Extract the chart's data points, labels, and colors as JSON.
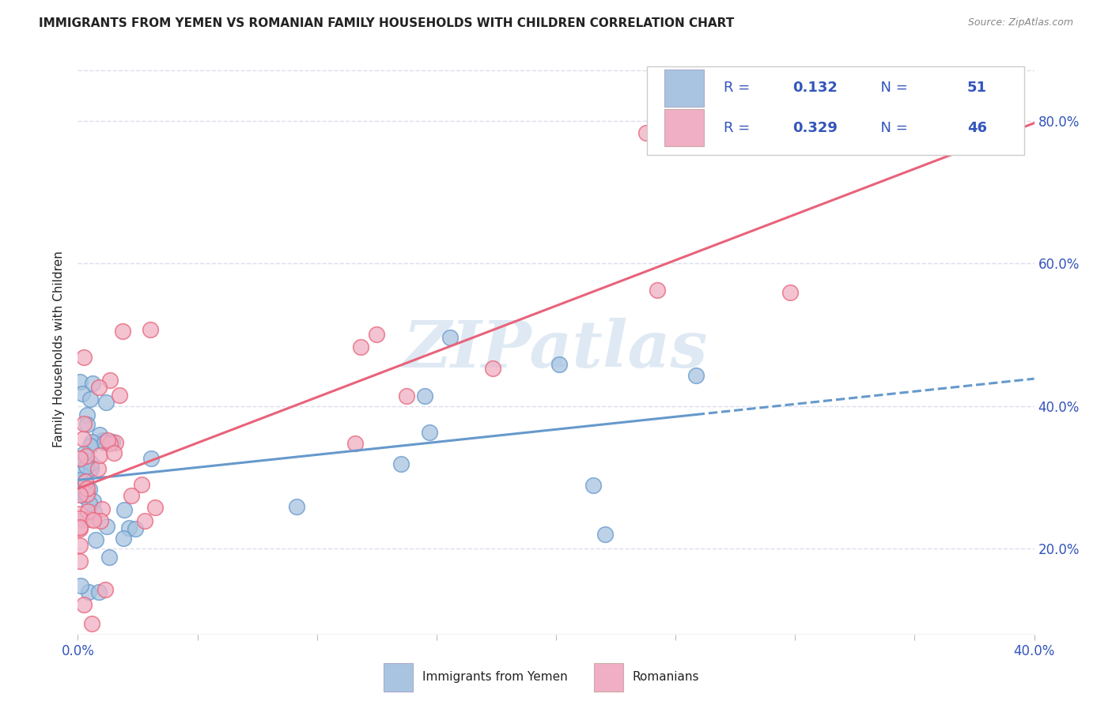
{
  "title": "IMMIGRANTS FROM YEMEN VS ROMANIAN FAMILY HOUSEHOLDS WITH CHILDREN CORRELATION CHART",
  "source": "Source: ZipAtlas.com",
  "ylabel": "Family Households with Children",
  "yticks_labels": [
    "20.0%",
    "40.0%",
    "60.0%",
    "80.0%"
  ],
  "ytick_vals": [
    0.2,
    0.4,
    0.6,
    0.8
  ],
  "xlim": [
    0.0,
    0.4
  ],
  "ylim": [
    0.08,
    0.88
  ],
  "r_yemen": 0.132,
  "n_yemen": 51,
  "r_romanian": 0.329,
  "n_romanian": 46,
  "color_yemen": "#a8c4e0",
  "color_romanian": "#f0afc4",
  "color_trendline_yemen": "#6699cc",
  "color_trendline_romanian": "#e8637a",
  "legend_label_yemen": "Immigrants from Yemen",
  "legend_label_romanian": "Romanians",
  "watermark": "ZIPatlas",
  "text_blue": "#3355bb",
  "text_dark": "#222222",
  "text_gray": "#888888",
  "grid_color": "#ddddee"
}
